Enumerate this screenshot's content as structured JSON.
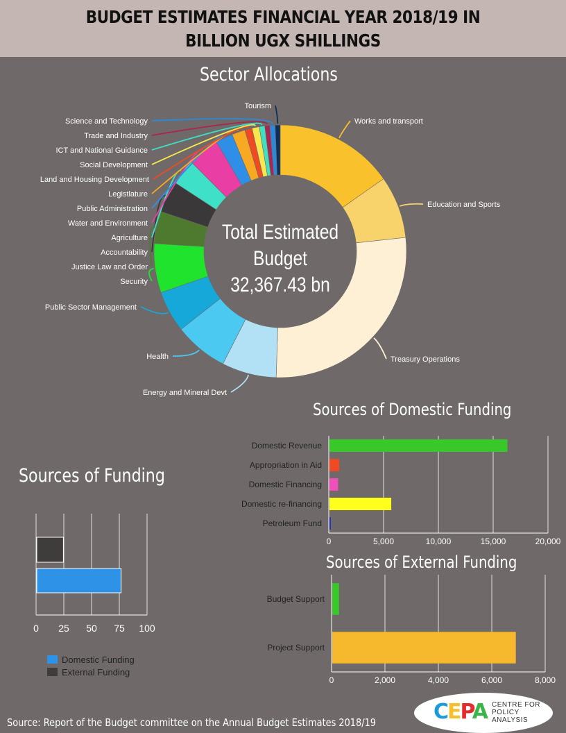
{
  "title": "BUDGET ESTIMATES FINANCIAL YEAR 2018/19 IN BILLION UGX SHILLINGS",
  "source": "Source: Report of the Budget committee on the Annual Budget Estimates 2018/19",
  "logo": {
    "mark": [
      "C",
      "E",
      "P",
      "A"
    ],
    "text": [
      "CENTRE FOR",
      "POLICY",
      "ANALYSIS"
    ]
  },
  "chart_data": [
    {
      "type": "pie",
      "title": "Sector Allocations",
      "center_label": [
        "Total Estimated",
        "Budget",
        "32,367.43 bn"
      ],
      "slices": [
        {
          "label": "Works and transport",
          "value": 4760,
          "color": "#f9c22c"
        },
        {
          "label": "Education and Sports",
          "value": 2490,
          "color": "#f8d36c"
        },
        {
          "label": "Treasury Operations",
          "value": 8500,
          "color": "#fdf0d4"
        },
        {
          "label": "Energy and Mineral Devt",
          "value": 2180,
          "color": "#b2e0f4"
        },
        {
          "label": "Health",
          "value": 2150,
          "color": "#4bc9f1"
        },
        {
          "label": "Public Sector Management",
          "value": 1650,
          "color": "#15a8d9"
        },
        {
          "label": "Security",
          "value": 1960,
          "color": "#1fe32c"
        },
        {
          "label": "Justice Law and Order",
          "value": 1290,
          "color": "#4e7a2f"
        },
        {
          "label": "Accountability",
          "value": 1270,
          "color": "#3a3838"
        },
        {
          "label": "Agriculture",
          "value": 1040,
          "color": "#3fe0c8"
        },
        {
          "label": "Water and Environment",
          "value": 1270,
          "color": "#e93fa4"
        },
        {
          "label": "Public Administration",
          "value": 680,
          "color": "#2f8fe6"
        },
        {
          "label": "Legistlature",
          "value": 530,
          "color": "#f8a924"
        },
        {
          "label": "Land and Housing Development",
          "value": 290,
          "color": "#ef4a24"
        },
        {
          "label": "Social Development",
          "value": 290,
          "color": "#f6e74f"
        },
        {
          "label": "ICT and National Guidance",
          "value": 220,
          "color": "#3ee0c2"
        },
        {
          "label": "Trade and Industry",
          "value": 200,
          "color": "#a8264f"
        },
        {
          "label": "Science and Technology",
          "value": 210,
          "color": "#2c89d9"
        },
        {
          "label": "Tourism",
          "value": 200,
          "color": "#0f2f56"
        }
      ]
    },
    {
      "type": "bar",
      "orientation": "horizontal",
      "title": "Sources of Domestic Funding",
      "categories": [
        "Domestic Revenue",
        "Appropriation in Aid",
        "Domestic Financing",
        "Domestic re-financing",
        "Petroleum Fund"
      ],
      "values": [
        16300,
        950,
        850,
        5700,
        150
      ],
      "colors": [
        "#38c82a",
        "#ef4a24",
        "#ee4fb8",
        "#ffff1e",
        "#2233bb"
      ],
      "xlim": [
        0,
        20000
      ],
      "ticks": [
        "0",
        "5,000",
        "10,000",
        "15,000",
        "20,000"
      ]
    },
    {
      "type": "bar",
      "orientation": "horizontal",
      "title": "Sources of External Funding",
      "categories": [
        "Budget Support",
        "Project Support"
      ],
      "values": [
        280,
        6900
      ],
      "colors": [
        "#38c82a",
        "#f6b82c"
      ],
      "xlim": [
        0,
        8000
      ],
      "ticks": [
        "0",
        "2,000",
        "4,000",
        "6,000",
        "8,000"
      ]
    },
    {
      "type": "bar",
      "orientation": "horizontal",
      "title": "Sources of Funding",
      "series": [
        {
          "name": "External Funding",
          "values": [
            24
          ],
          "color": "#3f3c3c"
        },
        {
          "name": "Domestic Funding",
          "values": [
            76
          ],
          "color": "#2e93e6"
        }
      ],
      "xlim": [
        0,
        100
      ],
      "ticks": [
        "0",
        "25",
        "50",
        "75",
        "100"
      ],
      "legend": "bottom"
    }
  ]
}
